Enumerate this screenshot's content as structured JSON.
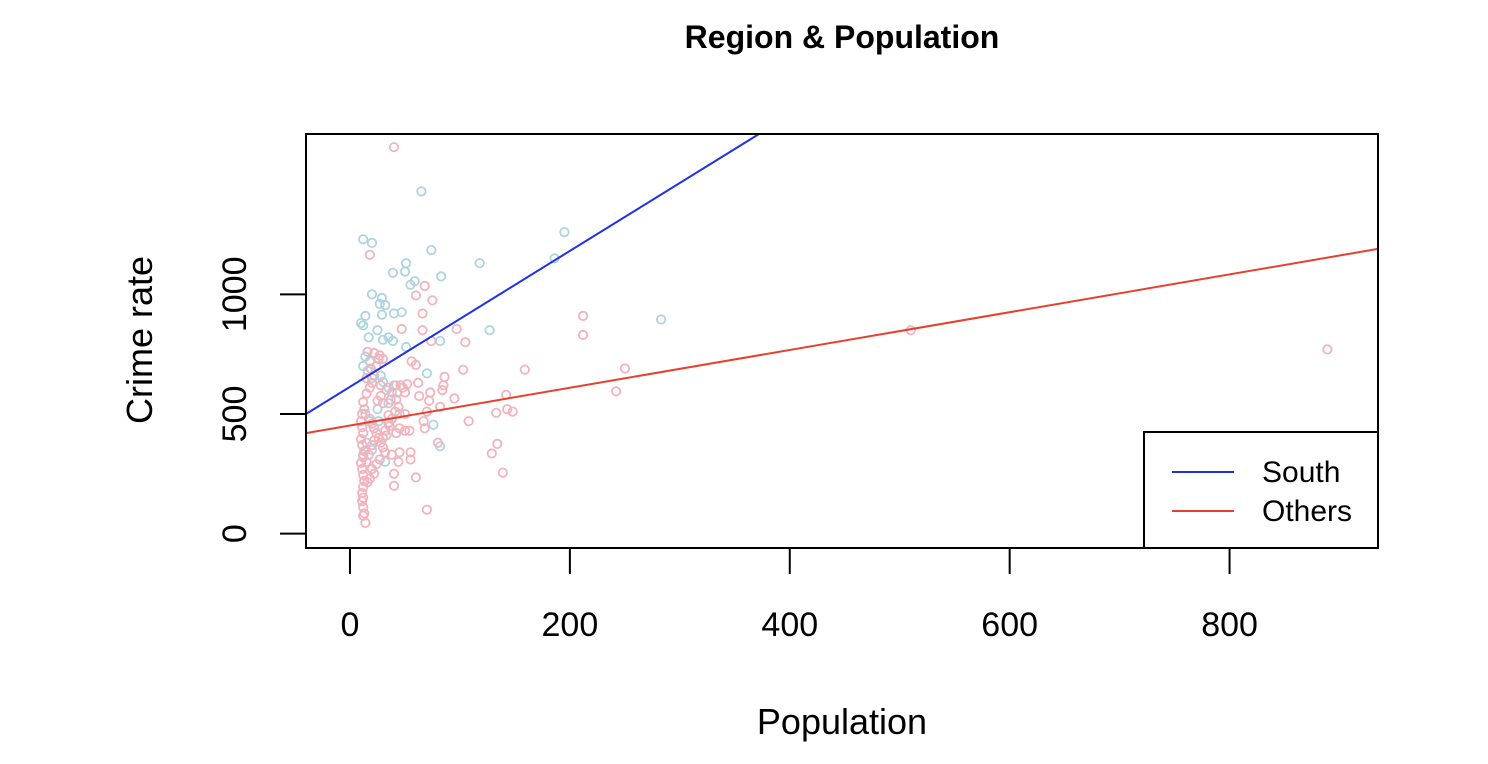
{
  "chart_data": {
    "type": "scatter",
    "title": "Region & Population",
    "xlabel": "Population",
    "ylabel": "Crime rate",
    "xlim": [
      -40,
      935
    ],
    "ylim": [
      -60,
      1670
    ],
    "x_ticks": [
      0,
      200,
      400,
      600,
      800
    ],
    "y_ticks": [
      0,
      500,
      1000
    ],
    "grid": false,
    "legend": {
      "position": "bottom-right",
      "entries": [
        {
          "label": "South",
          "color": "#1f32e6"
        },
        {
          "label": "Others",
          "color": "#e8402f"
        }
      ]
    },
    "lines": [
      {
        "name": "South",
        "color": "#1f32e6",
        "x": [
          -40,
          372
        ],
        "y": [
          500,
          1670
        ]
      },
      {
        "name": "Others",
        "color": "#e8402f",
        "x": [
          -40,
          935
        ],
        "y": [
          420,
          1190
        ]
      }
    ],
    "series": [
      {
        "name": "South",
        "color": "#aed4e0",
        "points": [
          [
            12,
            1230
          ],
          [
            20,
            1215
          ],
          [
            65,
            1430
          ],
          [
            74,
            1185
          ],
          [
            195,
            1260
          ],
          [
            186,
            1150
          ],
          [
            118,
            1130
          ],
          [
            51,
            1130
          ],
          [
            83,
            1075
          ],
          [
            39,
            1090
          ],
          [
            50,
            1095
          ],
          [
            55,
            1040
          ],
          [
            59,
            1055
          ],
          [
            29,
            985
          ],
          [
            27,
            960
          ],
          [
            32,
            955
          ],
          [
            20,
            1000
          ],
          [
            40,
            920
          ],
          [
            47,
            925
          ],
          [
            29,
            915
          ],
          [
            14,
            910
          ],
          [
            10,
            880
          ],
          [
            12,
            870
          ],
          [
            25,
            850
          ],
          [
            35,
            820
          ],
          [
            39,
            805
          ],
          [
            30,
            810
          ],
          [
            17,
            820
          ],
          [
            51,
            780
          ],
          [
            82,
            805
          ],
          [
            127,
            850
          ],
          [
            283,
            895
          ],
          [
            14,
            740
          ],
          [
            18,
            720
          ],
          [
            12,
            700
          ],
          [
            16,
            680
          ],
          [
            20,
            650
          ],
          [
            28,
            660
          ],
          [
            30,
            635
          ],
          [
            35,
            610
          ],
          [
            38,
            590
          ],
          [
            42,
            620
          ],
          [
            35,
            545
          ],
          [
            25,
            520
          ],
          [
            14,
            500
          ],
          [
            18,
            470
          ],
          [
            22,
            440
          ],
          [
            26,
            470
          ],
          [
            30,
            400
          ],
          [
            15,
            380
          ],
          [
            20,
            350
          ],
          [
            12,
            330
          ],
          [
            32,
            300
          ],
          [
            70,
            670
          ],
          [
            76,
            455
          ],
          [
            82,
            365
          ],
          [
            35,
            460
          ],
          [
            45,
            500
          ]
        ]
      },
      {
        "name": "Others",
        "color": "#f2b3bd",
        "points": [
          [
            40,
            1615
          ],
          [
            18,
            1165
          ],
          [
            60,
            995
          ],
          [
            68,
            1035
          ],
          [
            75,
            975
          ],
          [
            66,
            920
          ],
          [
            47,
            855
          ],
          [
            66,
            850
          ],
          [
            97,
            855
          ],
          [
            74,
            805
          ],
          [
            105,
            800
          ],
          [
            212,
            910
          ],
          [
            212,
            830
          ],
          [
            159,
            685
          ],
          [
            250,
            690
          ],
          [
            242,
            595
          ],
          [
            510,
            850
          ],
          [
            889,
            770
          ],
          [
            142,
            580
          ],
          [
            148,
            510
          ],
          [
            133,
            505
          ],
          [
            143,
            520
          ],
          [
            134,
            375
          ],
          [
            129,
            335
          ],
          [
            139,
            255
          ],
          [
            108,
            470
          ],
          [
            103,
            685
          ],
          [
            95,
            565
          ],
          [
            85,
            620
          ],
          [
            86,
            655
          ],
          [
            84,
            600
          ],
          [
            82,
            530
          ],
          [
            80,
            380
          ],
          [
            72,
            555
          ],
          [
            73,
            590
          ],
          [
            70,
            510
          ],
          [
            67,
            470
          ],
          [
            68,
            440
          ],
          [
            70,
            100
          ],
          [
            62,
            630
          ],
          [
            63,
            575
          ],
          [
            60,
            705
          ],
          [
            56,
            720
          ],
          [
            55,
            340
          ],
          [
            55,
            310
          ],
          [
            60,
            235
          ],
          [
            54,
            430
          ],
          [
            50,
            430
          ],
          [
            45,
            440
          ],
          [
            50,
            500
          ],
          [
            44,
            530
          ],
          [
            42,
            560
          ],
          [
            40,
            620
          ],
          [
            38,
            480
          ],
          [
            35,
            495
          ],
          [
            32,
            430
          ],
          [
            40,
            200
          ],
          [
            40,
            250
          ],
          [
            38,
            330
          ],
          [
            45,
            340
          ],
          [
            44,
            300
          ],
          [
            48,
            610
          ],
          [
            46,
            620
          ],
          [
            43,
            590
          ],
          [
            52,
            625
          ],
          [
            50,
            590
          ],
          [
            26,
            730
          ],
          [
            24,
            700
          ],
          [
            22,
            660
          ],
          [
            20,
            630
          ],
          [
            18,
            610
          ],
          [
            15,
            585
          ],
          [
            12,
            550
          ],
          [
            13,
            520
          ],
          [
            11,
            500
          ],
          [
            10,
            470
          ],
          [
            11,
            445
          ],
          [
            12,
            420
          ],
          [
            10,
            395
          ],
          [
            11,
            370
          ],
          [
            13,
            345
          ],
          [
            12,
            320
          ],
          [
            10,
            295
          ],
          [
            11,
            270
          ],
          [
            12,
            245
          ],
          [
            13,
            220
          ],
          [
            12,
            195
          ],
          [
            11,
            170
          ],
          [
            12,
            150
          ],
          [
            11,
            135
          ],
          [
            12,
            110
          ],
          [
            13,
            85
          ],
          [
            12,
            75
          ],
          [
            14,
            45
          ],
          [
            18,
            480
          ],
          [
            20,
            460
          ],
          [
            22,
            440
          ],
          [
            24,
            420
          ],
          [
            26,
            400
          ],
          [
            28,
            380
          ],
          [
            30,
            360
          ],
          [
            32,
            340
          ],
          [
            27,
            310
          ],
          [
            24,
            290
          ],
          [
            20,
            270
          ],
          [
            22,
            250
          ],
          [
            18,
            230
          ],
          [
            16,
            215
          ],
          [
            25,
            555
          ],
          [
            28,
            575
          ],
          [
            30,
            545
          ],
          [
            35,
            465
          ],
          [
            33,
            410
          ],
          [
            22,
            390
          ],
          [
            20,
            370
          ],
          [
            17,
            330
          ],
          [
            15,
            300
          ],
          [
            16,
            760
          ],
          [
            22,
            755
          ],
          [
            27,
            745
          ],
          [
            30,
            730
          ],
          [
            19,
            690
          ],
          [
            15,
            650
          ],
          [
            28,
            620
          ],
          [
            33,
            600
          ],
          [
            37,
            560
          ],
          [
            41,
            510
          ],
          [
            36,
            450
          ],
          [
            42,
            420
          ]
        ]
      }
    ]
  }
}
